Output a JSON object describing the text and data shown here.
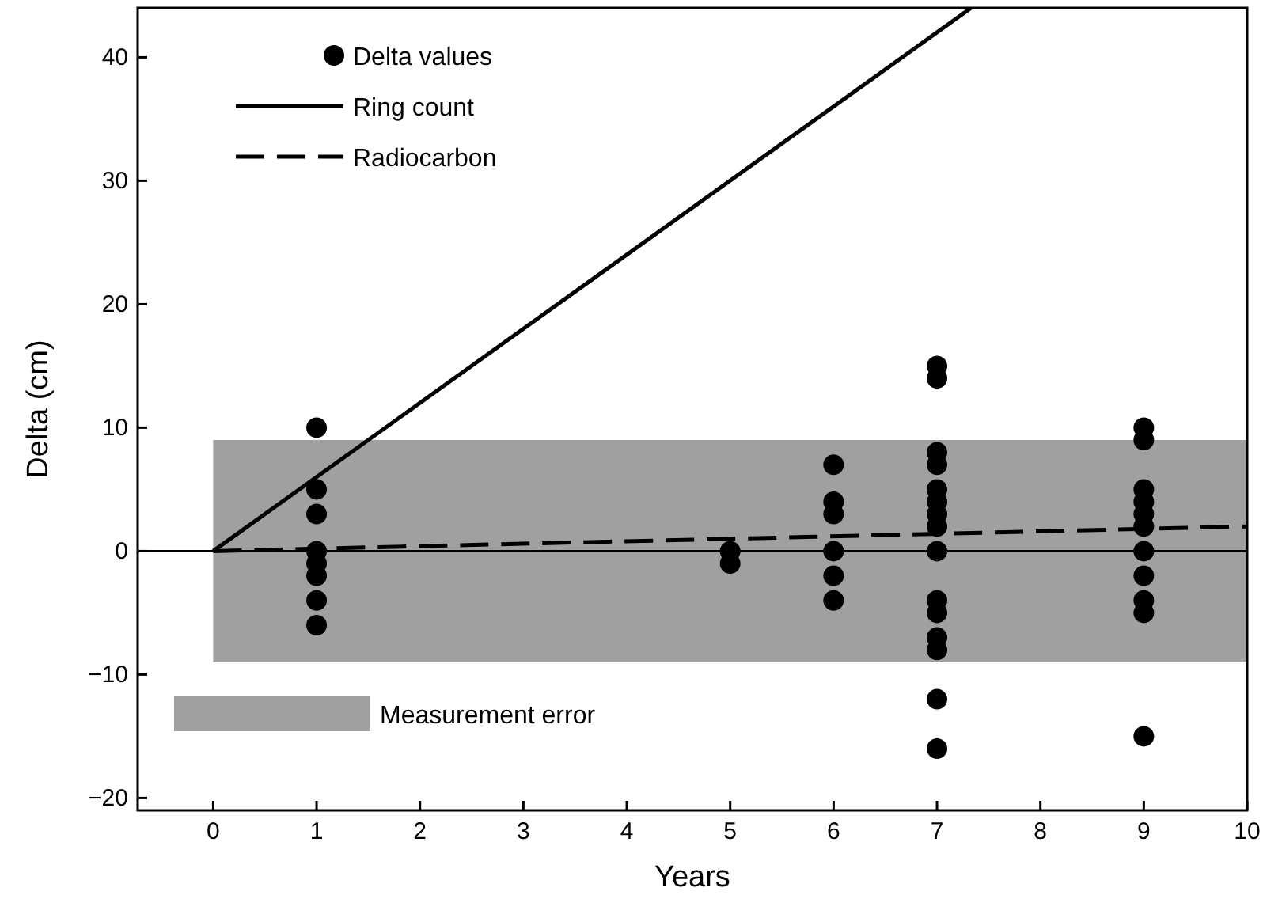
{
  "chart_data": {
    "type": "scatter",
    "xlabel": "Years",
    "ylabel": "Delta (cm)",
    "xlim": [
      -0.73,
      10
    ],
    "xticks": [
      0,
      1,
      2,
      3,
      4,
      5,
      6,
      7,
      8,
      9,
      10
    ],
    "ylim": [
      -21,
      44
    ],
    "yticks": [
      {
        "value": -20,
        "label": "−20"
      },
      {
        "value": -10,
        "label": "−10"
      },
      0,
      10,
      20,
      30,
      40
    ],
    "grid": false,
    "legend": "top left",
    "series": [
      {
        "name": "Delta values",
        "marker": "circle",
        "color": "#000000",
        "x": [
          1,
          1,
          1,
          1,
          1,
          1,
          1,
          1,
          5,
          5,
          6,
          6,
          6,
          6,
          6,
          6,
          7,
          7,
          7,
          7,
          7,
          7,
          7,
          7,
          7,
          7,
          7,
          7,
          7,
          7,
          7,
          9,
          9,
          9,
          9,
          9,
          9,
          9,
          9,
          9,
          9,
          9
        ],
        "values": [
          10,
          5,
          3,
          0,
          -1,
          -2,
          -4,
          -6,
          0,
          -1,
          7,
          4,
          3,
          0,
          -2,
          -4,
          15,
          14,
          8,
          7,
          5,
          4,
          3,
          2,
          0,
          -4,
          -5,
          -7,
          -8,
          -12,
          -16,
          10,
          9,
          5,
          4,
          3,
          2,
          0,
          -2,
          -4,
          -5,
          -15
        ]
      },
      {
        "name": "Ring count",
        "type": "line",
        "line_style": "solid",
        "color": "#000000",
        "x": [
          0,
          7.33
        ],
        "values": [
          0,
          44
        ]
      },
      {
        "name": "Radiocarbon",
        "type": "line",
        "line_style": "dashed",
        "color": "#000000",
        "x": [
          0,
          10
        ],
        "values": [
          0,
          2
        ]
      }
    ],
    "ref_lines": [
      {
        "axis": "y",
        "value": 0,
        "color": "#000000"
      }
    ],
    "bands": [
      {
        "axis": "y",
        "from": -9,
        "to": 9,
        "label": "Measurement error",
        "color": "#a0a0a0"
      }
    ]
  }
}
